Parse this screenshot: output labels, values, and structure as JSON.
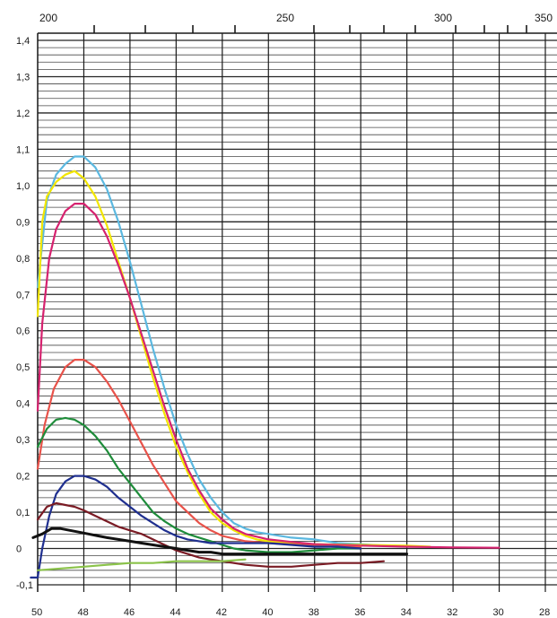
{
  "chart_data": {
    "type": "line",
    "title": "",
    "xlabel": "",
    "ylabel": "",
    "grid": true,
    "legend": "none",
    "paper_color": "#ffffff",
    "grid_color": "#1a1a1a",
    "x_bottom_ticks": [
      "50",
      "48",
      "46",
      "44",
      "42",
      "40",
      "38",
      "36",
      "34",
      "32",
      "30",
      "28"
    ],
    "x_top_ticks": [
      "200",
      "250",
      "300",
      "350"
    ],
    "y_ticks": [
      "-0,1",
      "0",
      "0,1",
      "0,2",
      "0,3",
      "0,4",
      "0,5",
      "0,6",
      "0,7",
      "0,8",
      "0,9",
      "1,0",
      "1,1",
      "1,2",
      "1,3",
      "1,4"
    ],
    "xlim": [
      50,
      28
    ],
    "ylim": [
      -0.1,
      1.4
    ],
    "series": [
      {
        "color": "#5bb8e0",
        "points": [
          [
            50,
            0.72
          ],
          [
            49.6,
            0.96
          ],
          [
            49.2,
            1.03
          ],
          [
            48.8,
            1.06
          ],
          [
            48.4,
            1.08
          ],
          [
            48,
            1.08
          ],
          [
            47.5,
            1.05
          ],
          [
            47,
            0.99
          ],
          [
            46.5,
            0.9
          ],
          [
            46,
            0.79
          ],
          [
            45.5,
            0.67
          ],
          [
            45,
            0.55
          ],
          [
            44.5,
            0.44
          ],
          [
            44,
            0.34
          ],
          [
            43.5,
            0.26
          ],
          [
            43,
            0.19
          ],
          [
            42.5,
            0.14
          ],
          [
            42,
            0.1
          ],
          [
            41.5,
            0.07
          ],
          [
            41,
            0.055
          ],
          [
            40.5,
            0.045
          ],
          [
            40,
            0.04
          ],
          [
            39.5,
            0.035
          ],
          [
            39,
            0.03
          ],
          [
            38,
            0.025
          ],
          [
            37,
            0.015
          ],
          [
            36,
            0.012
          ],
          [
            35,
            0.008
          ],
          [
            34,
            0.005
          ]
        ]
      },
      {
        "color": "#f2e600",
        "points": [
          [
            50,
            0.64
          ],
          [
            49.8,
            0.9
          ],
          [
            49.6,
            0.97
          ],
          [
            49.2,
            1.01
          ],
          [
            48.8,
            1.03
          ],
          [
            48.4,
            1.04
          ],
          [
            48,
            1.02
          ],
          [
            47.5,
            0.97
          ],
          [
            47,
            0.89
          ],
          [
            46.5,
            0.79
          ],
          [
            46,
            0.69
          ],
          [
            45.5,
            0.58
          ],
          [
            45,
            0.47
          ],
          [
            44.5,
            0.37
          ],
          [
            44,
            0.28
          ],
          [
            43.5,
            0.21
          ],
          [
            43,
            0.15
          ],
          [
            42.5,
            0.1
          ],
          [
            42,
            0.07
          ],
          [
            41.5,
            0.05
          ],
          [
            41,
            0.035
          ],
          [
            40.5,
            0.025
          ],
          [
            40,
            0.02
          ],
          [
            39,
            0.015
          ],
          [
            38,
            0.012
          ],
          [
            36,
            0.01
          ],
          [
            34,
            0.008
          ],
          [
            33,
            0.005
          ]
        ]
      },
      {
        "color": "#d6226f",
        "points": [
          [
            50,
            0.38
          ],
          [
            49.8,
            0.62
          ],
          [
            49.5,
            0.8
          ],
          [
            49.2,
            0.88
          ],
          [
            48.8,
            0.93
          ],
          [
            48.4,
            0.95
          ],
          [
            48,
            0.95
          ],
          [
            47.5,
            0.92
          ],
          [
            47,
            0.86
          ],
          [
            46.5,
            0.78
          ],
          [
            46,
            0.69
          ],
          [
            45.5,
            0.59
          ],
          [
            45,
            0.49
          ],
          [
            44.5,
            0.39
          ],
          [
            44,
            0.3
          ],
          [
            43.5,
            0.22
          ],
          [
            43,
            0.16
          ],
          [
            42.5,
            0.11
          ],
          [
            42,
            0.08
          ],
          [
            41.5,
            0.055
          ],
          [
            41,
            0.04
          ],
          [
            40,
            0.025
          ],
          [
            39,
            0.018
          ],
          [
            38,
            0.012
          ],
          [
            36,
            0.008
          ],
          [
            34,
            0.005
          ],
          [
            32,
            0.003
          ],
          [
            30,
            0.002
          ]
        ]
      },
      {
        "color": "#e8524a",
        "points": [
          [
            50,
            0.22
          ],
          [
            49.7,
            0.34
          ],
          [
            49.3,
            0.44
          ],
          [
            48.8,
            0.5
          ],
          [
            48.4,
            0.52
          ],
          [
            48,
            0.52
          ],
          [
            47.5,
            0.5
          ],
          [
            47,
            0.46
          ],
          [
            46.5,
            0.41
          ],
          [
            46,
            0.35
          ],
          [
            45.5,
            0.29
          ],
          [
            45,
            0.23
          ],
          [
            44.5,
            0.18
          ],
          [
            44,
            0.13
          ],
          [
            43.5,
            0.1
          ],
          [
            43,
            0.07
          ],
          [
            42.5,
            0.05
          ],
          [
            42,
            0.035
          ],
          [
            41,
            0.02
          ],
          [
            40,
            0.015
          ],
          [
            38,
            0.008
          ],
          [
            36,
            0.005
          ]
        ]
      },
      {
        "color": "#1e8c3a",
        "points": [
          [
            50,
            0.28
          ],
          [
            49.6,
            0.33
          ],
          [
            49.2,
            0.355
          ],
          [
            48.8,
            0.36
          ],
          [
            48.4,
            0.355
          ],
          [
            48,
            0.34
          ],
          [
            47.5,
            0.31
          ],
          [
            47,
            0.27
          ],
          [
            46.5,
            0.22
          ],
          [
            46,
            0.18
          ],
          [
            45.5,
            0.14
          ],
          [
            45,
            0.1
          ],
          [
            44.5,
            0.075
          ],
          [
            44,
            0.055
          ],
          [
            43.5,
            0.04
          ],
          [
            43,
            0.03
          ],
          [
            42.5,
            0.02
          ],
          [
            42,
            0.01
          ],
          [
            41.5,
            0.0
          ],
          [
            41,
            -0.005
          ],
          [
            40,
            -0.01
          ],
          [
            39,
            -0.01
          ],
          [
            38,
            -0.005
          ],
          [
            37,
            0.0
          ],
          [
            36,
            0.0
          ]
        ]
      },
      {
        "color": "#1f2f8f",
        "points": [
          [
            50.3,
            -0.08
          ],
          [
            50,
            -0.08
          ],
          [
            49.8,
            0.0
          ],
          [
            49.5,
            0.09
          ],
          [
            49.2,
            0.15
          ],
          [
            48.8,
            0.185
          ],
          [
            48.4,
            0.2
          ],
          [
            48,
            0.2
          ],
          [
            47.5,
            0.19
          ],
          [
            47,
            0.17
          ],
          [
            46.5,
            0.14
          ],
          [
            46,
            0.115
          ],
          [
            45.5,
            0.09
          ],
          [
            45,
            0.07
          ],
          [
            44.5,
            0.05
          ],
          [
            44,
            0.035
          ],
          [
            43.5,
            0.025
          ],
          [
            43,
            0.02
          ],
          [
            42.5,
            0.015
          ],
          [
            42,
            0.015
          ],
          [
            41,
            0.015
          ],
          [
            40,
            0.015
          ],
          [
            39,
            0.01
          ],
          [
            38,
            0.005
          ],
          [
            37,
            0.005
          ],
          [
            36,
            0.0
          ]
        ]
      },
      {
        "color": "#7a1b24",
        "points": [
          [
            50,
            0.08
          ],
          [
            49.6,
            0.115
          ],
          [
            49.2,
            0.125
          ],
          [
            48.8,
            0.12
          ],
          [
            48.4,
            0.115
          ],
          [
            48,
            0.105
          ],
          [
            47.5,
            0.09
          ],
          [
            47,
            0.075
          ],
          [
            46.5,
            0.06
          ],
          [
            46,
            0.05
          ],
          [
            45.5,
            0.04
          ],
          [
            45,
            0.025
          ],
          [
            44.5,
            0.01
          ],
          [
            44,
            -0.005
          ],
          [
            43.5,
            -0.015
          ],
          [
            43,
            -0.025
          ],
          [
            42.5,
            -0.03
          ],
          [
            42,
            -0.035
          ],
          [
            41,
            -0.045
          ],
          [
            40,
            -0.05
          ],
          [
            39,
            -0.05
          ],
          [
            38,
            -0.045
          ],
          [
            37,
            -0.04
          ],
          [
            36,
            -0.04
          ],
          [
            35,
            -0.035
          ]
        ]
      },
      {
        "color": "#111111",
        "points": [
          [
            50.2,
            0.03
          ],
          [
            49.8,
            0.04
          ],
          [
            49.4,
            0.055
          ],
          [
            49,
            0.055
          ],
          [
            48.6,
            0.05
          ],
          [
            48.2,
            0.045
          ],
          [
            47.8,
            0.04
          ],
          [
            47.4,
            0.035
          ],
          [
            47,
            0.03
          ],
          [
            46.5,
            0.025
          ],
          [
            46,
            0.02
          ],
          [
            45.5,
            0.015
          ],
          [
            45,
            0.01
          ],
          [
            44.5,
            0.005
          ],
          [
            44,
            0.0
          ],
          [
            43.5,
            -0.005
          ],
          [
            43,
            -0.01
          ],
          [
            42.5,
            -0.01
          ],
          [
            42,
            -0.015
          ],
          [
            41,
            -0.015
          ],
          [
            40,
            -0.015
          ],
          [
            39,
            -0.015
          ],
          [
            38,
            -0.015
          ],
          [
            37,
            -0.015
          ],
          [
            36,
            -0.015
          ],
          [
            35,
            -0.015
          ],
          [
            34,
            -0.015
          ]
        ]
      },
      {
        "color": "#8bc34a",
        "points": [
          [
            50,
            -0.06
          ],
          [
            49,
            -0.055
          ],
          [
            48,
            -0.05
          ],
          [
            47,
            -0.045
          ],
          [
            46,
            -0.04
          ],
          [
            45,
            -0.04
          ],
          [
            44,
            -0.035
          ],
          [
            43,
            -0.035
          ],
          [
            42,
            -0.035
          ],
          [
            41,
            -0.03
          ]
        ]
      }
    ]
  }
}
